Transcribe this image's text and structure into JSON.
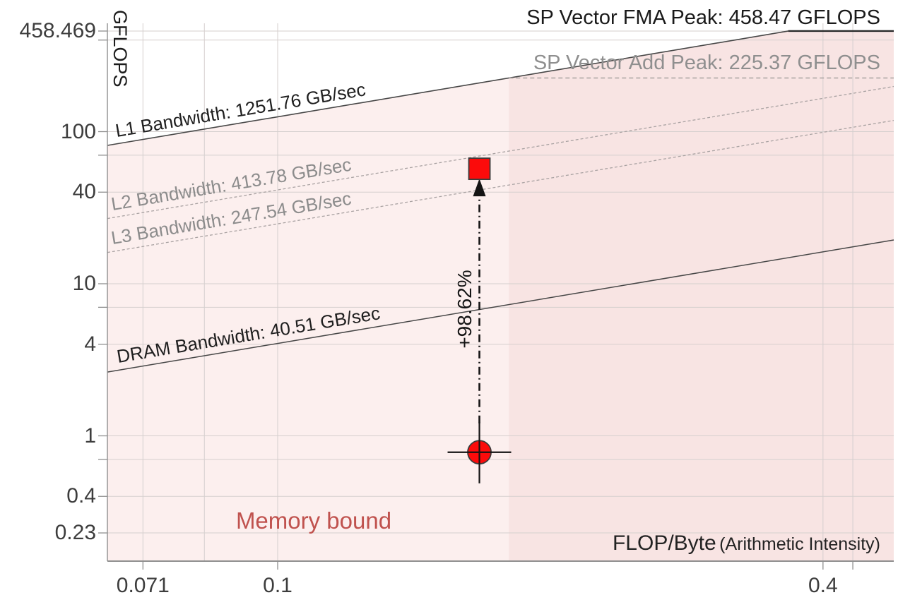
{
  "chart_data": {
    "type": "line",
    "subtype": "roofline",
    "scale": "log-log",
    "ylabel": "GFLOPS",
    "xlabel": "FLOP/Byte",
    "xlabel_note": "(Arithmetic Intensity)",
    "x_ticks": [
      {
        "value": 0.071,
        "label": "0.071"
      },
      {
        "value": 0.1,
        "label": "0.1"
      },
      {
        "value": 0.4,
        "label": "0.4"
      }
    ],
    "x_minor_ticks": [
      0.083,
      0.4315
    ],
    "y_ticks": [
      {
        "value": 458.469,
        "label": "458.469"
      },
      {
        "value": 100,
        "label": "100"
      },
      {
        "value": 40,
        "label": "40"
      },
      {
        "value": 10,
        "label": "10"
      },
      {
        "value": 4,
        "label": "4"
      },
      {
        "value": 1,
        "label": "1"
      },
      {
        "value": 0.4,
        "label": "0.4"
      },
      {
        "value": 0.23,
        "label": "0.23"
      }
    ],
    "y_minor_ticks": [
      400,
      70,
      7,
      0.7
    ],
    "x_range": [
      0.0649,
      0.4788
    ],
    "y_range": [
      0.19,
      520
    ],
    "grid": true,
    "memory_rooflines": [
      {
        "name": "L1",
        "label": "L1 Bandwidth: 1251.76 GB/sec",
        "gb_per_sec": 1251.76,
        "style": "solid",
        "color": "#474747",
        "label_color": "#1f1f1f"
      },
      {
        "name": "L2",
        "label": "L2 Bandwidth: 413.78 GB/sec",
        "gb_per_sec": 413.78,
        "style": "dashed",
        "color": "#a9a2a2",
        "label_color": "#8c8c8c"
      },
      {
        "name": "L3",
        "label": "L3 Bandwidth: 247.54 GB/sec",
        "gb_per_sec": 247.54,
        "style": "dashed",
        "color": "#a9a2a2",
        "label_color": "#8c8c8c"
      },
      {
        "name": "DRAM",
        "label": "DRAM Bandwidth: 40.51 GB/sec",
        "gb_per_sec": 40.51,
        "style": "solid",
        "color": "#474747",
        "label_color": "#1f1f1f"
      }
    ],
    "compute_rooflines": [
      {
        "name": "SP Vector FMA Peak",
        "label": "SP Vector FMA Peak: 458.47 GFLOPS",
        "gflops": 458.47,
        "style": "solid",
        "color": "#2a2a2a",
        "label_color": "#1a1a1a"
      },
      {
        "name": "SP Vector Add Peak",
        "label": "SP Vector Add Peak: 225.37 GFLOPS",
        "gflops": 225.37,
        "style": "dashed",
        "color": "#a8a1a1",
        "label_color": "#8f8f8f"
      }
    ],
    "points": [
      {
        "shape": "circle",
        "marker": "crosshair-circle",
        "ai": 0.167,
        "gflops": 0.78,
        "role": "baseline"
      },
      {
        "shape": "square",
        "marker": "square",
        "ai": 0.167,
        "gflops": 57,
        "role": "optimized"
      }
    ],
    "delta_annotation": {
      "label": "+98.62%"
    },
    "zones": {
      "memory_bound_label": "Memory bound",
      "label_color": "#c0524e",
      "boundary_ai": 0.18,
      "light_fill": "#fcefee",
      "dark_fill": "#f8e4e3"
    },
    "colors": {
      "marker_fill": "#fb0b0b",
      "marker_stroke": "#3c3c3c",
      "grid": "#d5cfce",
      "axis": "#8f8f8f",
      "tick_label": "#3d3d3d",
      "annotation": "#141414"
    }
  }
}
